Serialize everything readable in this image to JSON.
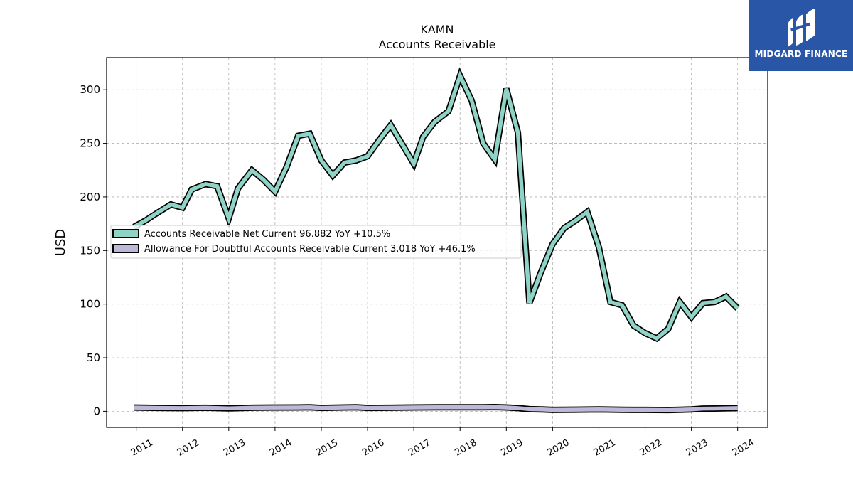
{
  "chart_data": {
    "type": "line",
    "title": "KAMN",
    "subtitle": "Accounts Receivable",
    "ylabel": "USD",
    "xlabel": "",
    "ylim": [
      -15,
      330
    ],
    "xlim": [
      2010.36,
      2024.65
    ],
    "yticks": [
      0,
      50,
      100,
      150,
      200,
      250,
      300
    ],
    "xticks": [
      "2011",
      "2012",
      "2013",
      "2014",
      "2015",
      "2016",
      "2017",
      "2018",
      "2019",
      "2020",
      "2021",
      "2022",
      "2023",
      "2024"
    ],
    "grid": true,
    "legend_position": "center-left",
    "colors": {
      "net": "#8fd3c6",
      "allowance": "#bcb8d8",
      "outline": "#000000",
      "grid": "#b0b0b0"
    },
    "series": [
      {
        "name": "Accounts Receivable Net Current",
        "legend_label": "Accounts Receivable Net Current  96.882 YoY +10.5%",
        "x": [
          2010.95,
          2011.2,
          2011.45,
          2011.75,
          2012.0,
          2012.2,
          2012.5,
          2012.75,
          2013.0,
          2013.2,
          2013.5,
          2013.75,
          2014.0,
          2014.25,
          2014.5,
          2014.75,
          2015.0,
          2015.25,
          2015.5,
          2015.75,
          2016.0,
          2016.25,
          2016.5,
          2016.75,
          2017.0,
          2017.2,
          2017.45,
          2017.75,
          2018.0,
          2018.25,
          2018.5,
          2018.75,
          2019.0,
          2019.25,
          2019.5,
          2019.75,
          2020.0,
          2020.25,
          2020.5,
          2020.75,
          2021.0,
          2021.25,
          2021.5,
          2021.75,
          2022.0,
          2022.25,
          2022.5,
          2022.75,
          2023.0,
          2023.25,
          2023.5,
          2023.75,
          2024.0
        ],
        "values": [
          172,
          178,
          185,
          193,
          190,
          207,
          212,
          210,
          180,
          208,
          225,
          216,
          205,
          228,
          257,
          259,
          234,
          220,
          232,
          234,
          238,
          253,
          267,
          249,
          231,
          256,
          270,
          280,
          313,
          290,
          250,
          235,
          301,
          260,
          101,
          130,
          156,
          171,
          178,
          186,
          153,
          102,
          99,
          80,
          73,
          68,
          77,
          102,
          88,
          101,
          102,
          107,
          96
        ]
      },
      {
        "name": "Allowance For Doubtful Accounts Receivable Current",
        "legend_label": "Allowance For Doubtful Accounts Receivable Current  3.018 YoY +46.1%",
        "x": [
          2010.95,
          2011.5,
          2012.0,
          2012.5,
          2013.0,
          2013.5,
          2014.0,
          2014.5,
          2014.75,
          2015.0,
          2015.5,
          2015.75,
          2016.0,
          2016.5,
          2017.0,
          2017.5,
          2018.0,
          2018.5,
          2018.75,
          2019.0,
          2019.25,
          2019.5,
          2019.75,
          2020.0,
          2020.5,
          2021.0,
          2021.5,
          2022.0,
          2022.5,
          2022.75,
          2023.0,
          2023.25,
          2023.5,
          2024.0
        ],
        "values": [
          3.5,
          3.2,
          3.0,
          3.3,
          2.8,
          3.3,
          3.5,
          3.6,
          3.7,
          3.2,
          3.6,
          3.8,
          3.2,
          3.3,
          3.6,
          3.8,
          3.8,
          3.7,
          3.9,
          3.6,
          3.0,
          2.0,
          1.8,
          1.3,
          1.5,
          1.8,
          1.4,
          1.3,
          1.2,
          1.4,
          1.8,
          2.5,
          2.6,
          3.0
        ]
      }
    ]
  },
  "logo": {
    "text": "MIDGARD FINANCE",
    "background": "#2a56a8"
  }
}
